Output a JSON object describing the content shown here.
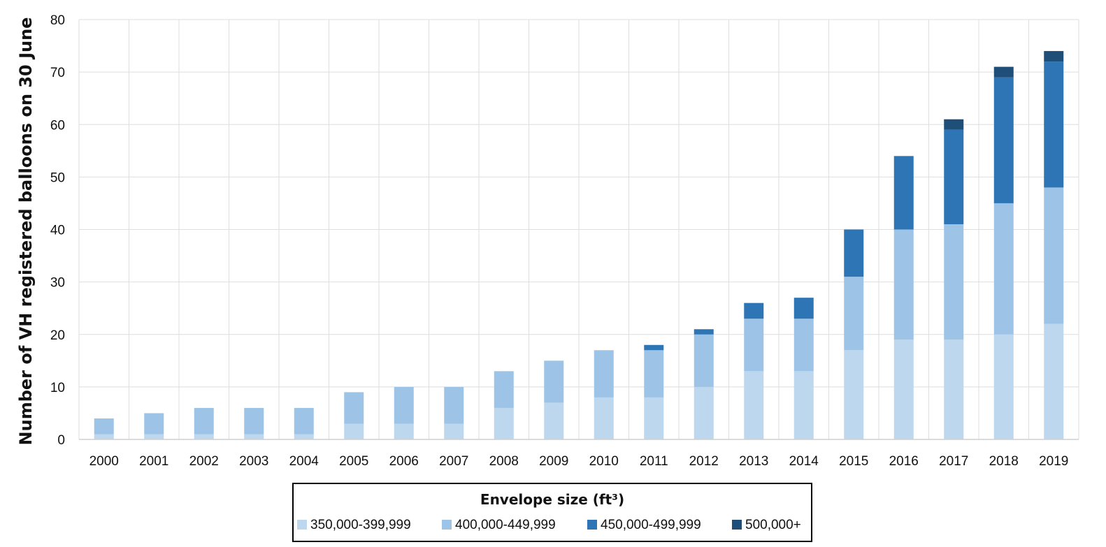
{
  "chart_data": {
    "type": "bar",
    "stacked": true,
    "ylabel": "Number of VH registered balloons on 30 June",
    "xlabel": "",
    "ylim": [
      0,
      80
    ],
    "yticks": [
      0,
      10,
      20,
      30,
      40,
      50,
      60,
      70,
      80
    ],
    "grid": true,
    "categories": [
      "2000",
      "2001",
      "2002",
      "2003",
      "2004",
      "2005",
      "2006",
      "2007",
      "2008",
      "2009",
      "2010",
      "2011",
      "2012",
      "2013",
      "2014",
      "2015",
      "2016",
      "2017",
      "2018",
      "2019"
    ],
    "legend": {
      "title": "Envelope size (ft³)",
      "placement": "bottom"
    },
    "series": [
      {
        "name": "350,000-399,999",
        "color": "#bdd7ee",
        "values": [
          1,
          1,
          1,
          1,
          1,
          3,
          3,
          3,
          6,
          7,
          8,
          8,
          10,
          13,
          13,
          17,
          19,
          19,
          20,
          22
        ]
      },
      {
        "name": "400,000-449,999",
        "color": "#9dc3e6",
        "values": [
          3,
          4,
          5,
          5,
          5,
          6,
          7,
          7,
          7,
          8,
          9,
          9,
          10,
          10,
          10,
          14,
          21,
          22,
          25,
          26
        ]
      },
      {
        "name": "450,000-499,999",
        "color": "#2e75b6",
        "values": [
          0,
          0,
          0,
          0,
          0,
          0,
          0,
          0,
          0,
          0,
          0,
          1,
          1,
          3,
          4,
          9,
          14,
          18,
          24,
          24
        ]
      },
      {
        "name": "500,000+",
        "color": "#1f4e79",
        "values": [
          0,
          0,
          0,
          0,
          0,
          0,
          0,
          0,
          0,
          0,
          0,
          0,
          0,
          0,
          0,
          0,
          0,
          2,
          2,
          2
        ]
      }
    ]
  }
}
